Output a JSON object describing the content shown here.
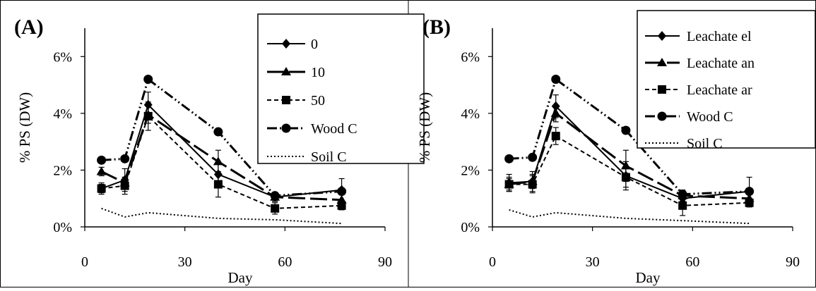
{
  "chart_data": [
    {
      "type": "line",
      "panel_label": "(A)",
      "xlabel": "Day",
      "ylabel": "% PS (DW)",
      "xlim": [
        0,
        90
      ],
      "ylim": [
        0,
        7
      ],
      "xticks": [
        "0",
        "30",
        "60",
        "90"
      ],
      "yticks": [
        {
          "value": 0,
          "label": "0%"
        },
        {
          "value": 2,
          "label": "2%"
        },
        {
          "value": 4,
          "label": "4%"
        },
        {
          "value": 6,
          "label": "6%"
        }
      ],
      "grid": false,
      "legend_position": "top-right",
      "series": [
        {
          "name": "0",
          "marker": "diamond",
          "dash": "solid",
          "points": [
            [
              5,
              1.35
            ],
            [
              12,
              1.65
            ],
            [
              19,
              4.3
            ],
            [
              40,
              1.85
            ],
            [
              57,
              1.05
            ],
            [
              77,
              1.3
            ]
          ],
          "errors": [
            0.2,
            0.4,
            0.45,
            0.35,
            0.15,
            0.4
          ]
        },
        {
          "name": "10",
          "marker": "triangle",
          "dash": "long-dash",
          "points": [
            [
              5,
              1.95
            ],
            [
              12,
              1.55
            ],
            [
              19,
              3.95
            ],
            [
              40,
              2.3
            ],
            [
              57,
              1.05
            ],
            [
              77,
              0.95
            ]
          ],
          "errors": [
            0.15,
            0.2,
            0.3,
            0.4,
            0.15,
            0.2
          ]
        },
        {
          "name": "50",
          "marker": "square",
          "dash": "short-dash",
          "points": [
            [
              5,
              1.35
            ],
            [
              12,
              1.45
            ],
            [
              19,
              3.9
            ],
            [
              40,
              1.5
            ],
            [
              57,
              0.65
            ],
            [
              77,
              0.75
            ]
          ],
          "errors": [
            0.15,
            0.3,
            0.5,
            0.45,
            0.2,
            0.15
          ]
        },
        {
          "name": "Wood C",
          "marker": "circle",
          "dash": "dash-dot-dot",
          "points": [
            [
              5,
              2.35
            ],
            [
              12,
              2.4
            ],
            [
              19,
              5.2
            ],
            [
              40,
              3.35
            ],
            [
              57,
              1.1
            ],
            [
              77,
              1.25
            ]
          ],
          "errors": [
            0,
            0,
            0,
            0,
            0,
            0
          ]
        },
        {
          "name": "Soil C",
          "marker": "none",
          "dash": "dotted",
          "points": [
            [
              5,
              0.65
            ],
            [
              12,
              0.35
            ],
            [
              19,
              0.5
            ],
            [
              40,
              0.3
            ],
            [
              57,
              0.25
            ],
            [
              77,
              0.12
            ]
          ],
          "errors": [
            0,
            0,
            0,
            0,
            0,
            0
          ]
        }
      ]
    },
    {
      "type": "line",
      "panel_label": "(B)",
      "xlabel": "Day",
      "ylabel": "% PS (DW)",
      "xlim": [
        0,
        90
      ],
      "ylim": [
        0,
        7
      ],
      "xticks": [
        "0",
        "30",
        "60",
        "90"
      ],
      "yticks": [
        {
          "value": 0,
          "label": "0%"
        },
        {
          "value": 2,
          "label": "2%"
        },
        {
          "value": 4,
          "label": "4%"
        },
        {
          "value": 6,
          "label": "6%"
        }
      ],
      "grid": false,
      "legend_position": "top-right",
      "series": [
        {
          "name": "Leachate el",
          "marker": "diamond",
          "dash": "solid",
          "points": [
            [
              5,
              1.55
            ],
            [
              12,
              1.6
            ],
            [
              19,
              4.25
            ],
            [
              40,
              1.8
            ],
            [
              57,
              1.0
            ],
            [
              77,
              1.25
            ]
          ],
          "errors": [
            0.3,
            0.35,
            0.4,
            0.5,
            0.2,
            0.5
          ]
        },
        {
          "name": "Leachate an",
          "marker": "triangle",
          "dash": "long-dash",
          "points": [
            [
              5,
              1.5
            ],
            [
              12,
              1.6
            ],
            [
              19,
              4.0
            ],
            [
              40,
              2.15
            ],
            [
              57,
              1.1
            ],
            [
              77,
              1.0
            ]
          ],
          "errors": [
            0.25,
            0.25,
            0.3,
            0.55,
            0.2,
            0.25
          ]
        },
        {
          "name": "Leachate ar",
          "marker": "square",
          "dash": "short-dash",
          "points": [
            [
              5,
              1.5
            ],
            [
              12,
              1.5
            ],
            [
              19,
              3.2
            ],
            [
              40,
              1.75
            ],
            [
              57,
              0.75
            ],
            [
              77,
              0.85
            ]
          ],
          "errors": [
            0.2,
            0.3,
            0.3,
            0.35,
            0.35,
            0.15
          ]
        },
        {
          "name": "Wood C",
          "marker": "circle",
          "dash": "dash-dot-dot",
          "points": [
            [
              5,
              2.4
            ],
            [
              12,
              2.45
            ],
            [
              19,
              5.2
            ],
            [
              40,
              3.4
            ],
            [
              57,
              1.15
            ],
            [
              77,
              1.25
            ]
          ],
          "errors": [
            0,
            0,
            0,
            0,
            0,
            0
          ]
        },
        {
          "name": "Soil C",
          "marker": "none",
          "dash": "dotted",
          "points": [
            [
              5,
              0.6
            ],
            [
              12,
              0.35
            ],
            [
              19,
              0.5
            ],
            [
              40,
              0.3
            ],
            [
              57,
              0.22
            ],
            [
              77,
              0.12
            ]
          ],
          "errors": [
            0,
            0,
            0,
            0,
            0,
            0
          ]
        }
      ]
    }
  ]
}
